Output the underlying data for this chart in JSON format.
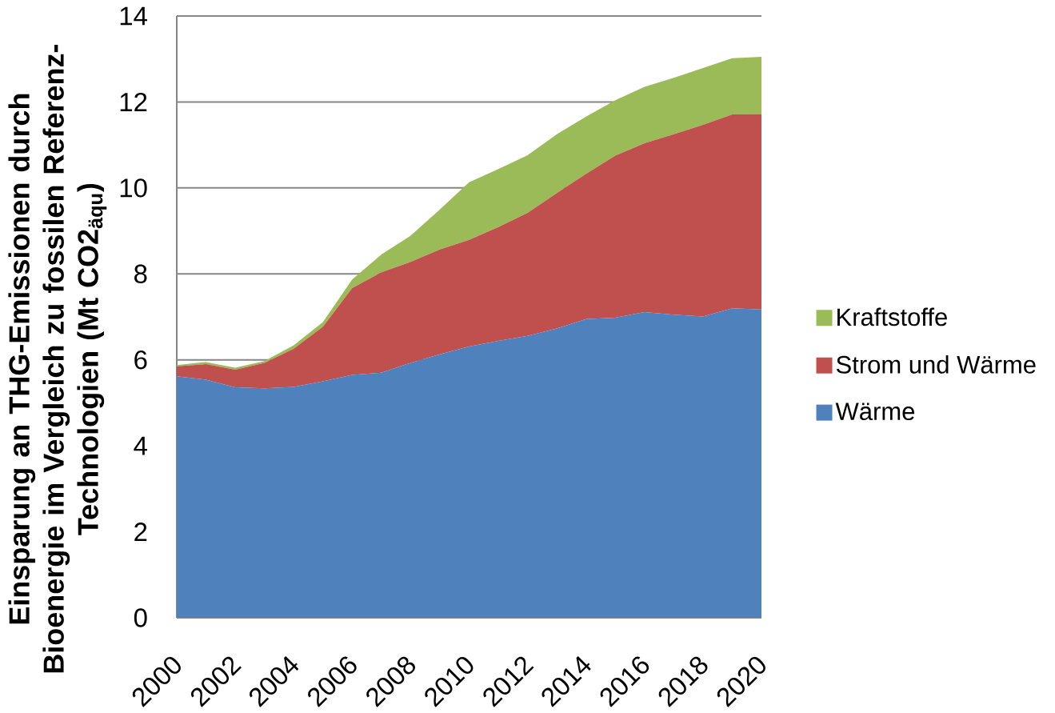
{
  "chart_data": {
    "type": "area",
    "stacked": true,
    "ylabel": "Einsparung an THG-Emissionen durch Bioenergie im Vergleich zu fossilen Referenz-Technologien (Mt CO2$_{äqu}$)",
    "x": [
      2000,
      2001,
      2002,
      2003,
      2004,
      2005,
      2006,
      2007,
      2008,
      2009,
      2010,
      2011,
      2012,
      2013,
      2014,
      2015,
      2016,
      2017,
      2018,
      2019,
      2020
    ],
    "series": [
      {
        "name": "Wärme",
        "color": "#4f81bd",
        "values": [
          5.62,
          5.54,
          5.36,
          5.34,
          5.37,
          5.5,
          5.65,
          5.7,
          5.93,
          6.13,
          6.31,
          6.44,
          6.56,
          6.73,
          6.95,
          6.98,
          7.11,
          7.05,
          7.01,
          7.2,
          7.17
        ]
      },
      {
        "name": "Strom und Wärme",
        "color": "#c0504d",
        "values": [
          0.23,
          0.36,
          0.41,
          0.59,
          0.89,
          1.27,
          2.02,
          2.34,
          2.35,
          2.44,
          2.48,
          2.65,
          2.86,
          3.15,
          3.38,
          3.77,
          3.93,
          4.2,
          4.46,
          4.51,
          4.55
        ]
      },
      {
        "name": "Kraftstoffe",
        "color": "#9bbb59",
        "values": [
          0.03,
          0.05,
          0.05,
          0.04,
          0.08,
          0.11,
          0.2,
          0.41,
          0.61,
          0.93,
          1.34,
          1.35,
          1.34,
          1.37,
          1.33,
          1.29,
          1.31,
          1.31,
          1.32,
          1.31,
          1.33
        ]
      }
    ],
    "xlim": [
      2000,
      2020
    ],
    "xticks": [
      2000,
      2002,
      2004,
      2006,
      2008,
      2010,
      2012,
      2014,
      2016,
      2018,
      2020
    ],
    "ylim": [
      0,
      14
    ],
    "yticks": [
      0,
      2,
      4,
      6,
      8,
      10,
      12,
      14
    ],
    "grid": "y",
    "legend": "right"
  }
}
